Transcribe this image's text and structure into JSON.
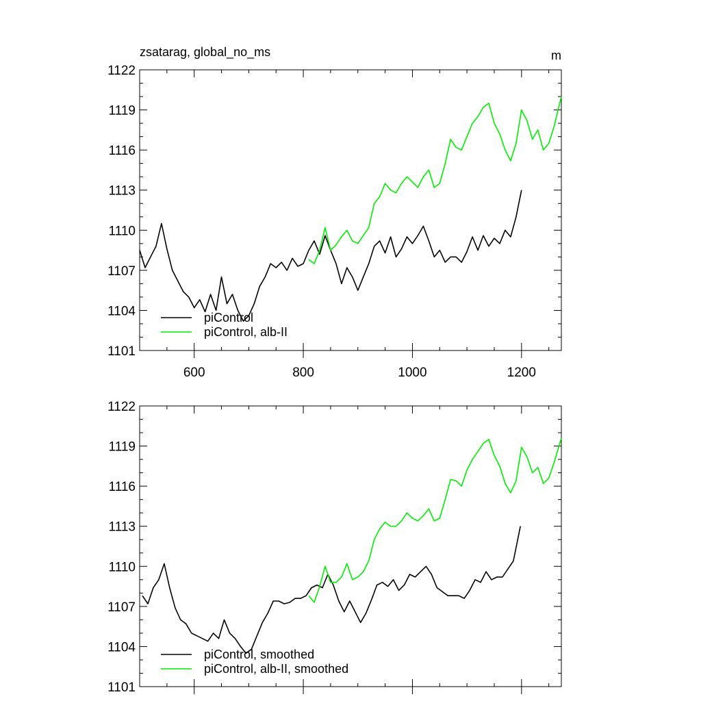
{
  "figure": {
    "title_left": "zsatarag, global_no_ms",
    "title_right": "m"
  },
  "colors": {
    "piControl": "#000000",
    "alb_II": "#00ee00"
  },
  "chart_data": [
    {
      "type": "line",
      "panel": "top",
      "title": "zsatarag, global_no_ms",
      "units_label": "m",
      "xlabel": "",
      "ylabel": "",
      "xlim": [
        500,
        1273
      ],
      "ylim": [
        1101,
        1122
      ],
      "xticks": [
        600,
        800,
        1000,
        1200
      ],
      "yticks": [
        1101,
        1104,
        1107,
        1110,
        1113,
        1116,
        1119,
        1122
      ],
      "show_x_tick_labels": true,
      "grid": false,
      "legend_placement": "lower-left",
      "series": [
        {
          "name": "piControl",
          "color": "#000000",
          "x": [
            500,
            510,
            520,
            530,
            540,
            550,
            560,
            570,
            580,
            590,
            600,
            610,
            620,
            630,
            640,
            650,
            660,
            670,
            680,
            690,
            700,
            710,
            720,
            730,
            740,
            750,
            760,
            770,
            780,
            790,
            800,
            810,
            820,
            830,
            840,
            850,
            860,
            870,
            880,
            890,
            900,
            910,
            920,
            930,
            940,
            950,
            960,
            970,
            980,
            990,
            1000,
            1010,
            1020,
            1030,
            1040,
            1050,
            1060,
            1070,
            1080,
            1090,
            1100,
            1110,
            1120,
            1130,
            1140,
            1150,
            1160,
            1170,
            1180,
            1190,
            1200
          ],
          "y": [
            1108.5,
            1107.2,
            1108.0,
            1108.8,
            1110.5,
            1108.6,
            1107.0,
            1106.2,
            1105.4,
            1105.0,
            1104.2,
            1104.8,
            1103.9,
            1105.2,
            1104.0,
            1106.5,
            1104.5,
            1105.2,
            1104.0,
            1103.2,
            1103.6,
            1104.5,
            1105.8,
            1106.5,
            1107.5,
            1107.2,
            1107.6,
            1107.0,
            1107.9,
            1107.3,
            1107.5,
            1108.5,
            1109.2,
            1108.2,
            1109.6,
            1108.5,
            1107.5,
            1106.0,
            1107.2,
            1106.5,
            1105.5,
            1106.5,
            1107.5,
            1108.8,
            1109.2,
            1108.3,
            1109.5,
            1108.0,
            1108.6,
            1109.5,
            1109.0,
            1109.6,
            1110.3,
            1109.2,
            1108.0,
            1108.5,
            1107.6,
            1108.0,
            1108.0,
            1107.6,
            1108.4,
            1109.5,
            1108.5,
            1109.6,
            1108.8,
            1109.4,
            1109.0,
            1110.0,
            1109.5,
            1111.0,
            1113.0
          ]
        },
        {
          "name": "piControl, alb-II",
          "color": "#00ee00",
          "x": [
            810,
            820,
            830,
            840,
            850,
            860,
            870,
            880,
            890,
            900,
            910,
            920,
            930,
            940,
            950,
            960,
            970,
            980,
            990,
            1000,
            1010,
            1020,
            1030,
            1040,
            1050,
            1060,
            1070,
            1080,
            1090,
            1100,
            1110,
            1120,
            1130,
            1140,
            1150,
            1160,
            1170,
            1180,
            1190,
            1200,
            1210,
            1220,
            1230,
            1240,
            1250,
            1260,
            1273
          ],
          "y": [
            1107.8,
            1107.5,
            1108.5,
            1110.2,
            1108.5,
            1108.9,
            1109.5,
            1110.0,
            1109.2,
            1109.0,
            1109.6,
            1110.2,
            1112.0,
            1112.5,
            1113.5,
            1113.0,
            1112.8,
            1113.5,
            1114.0,
            1113.6,
            1113.2,
            1114.0,
            1114.5,
            1113.2,
            1113.5,
            1115.0,
            1116.8,
            1116.2,
            1116.0,
            1117.0,
            1118.0,
            1118.5,
            1119.2,
            1119.5,
            1118.0,
            1117.2,
            1116.0,
            1115.2,
            1116.5,
            1119.0,
            1118.2,
            1116.8,
            1117.5,
            1116.0,
            1116.5,
            1117.8,
            1120.0
          ]
        }
      ]
    },
    {
      "type": "line",
      "panel": "bottom",
      "title": "",
      "xlabel": "",
      "ylabel": "",
      "xlim": [
        500,
        1273
      ],
      "ylim": [
        1101,
        1122
      ],
      "xticks": [
        600,
        800,
        1000,
        1200
      ],
      "yticks": [
        1101,
        1104,
        1107,
        1110,
        1113,
        1116,
        1119,
        1122
      ],
      "show_x_tick_labels": false,
      "grid": false,
      "legend_placement": "lower-left",
      "series": [
        {
          "name": "piControl, smoothed",
          "color": "#000000",
          "x": [
            505,
            515,
            525,
            535,
            545,
            555,
            565,
            575,
            585,
            595,
            605,
            615,
            625,
            635,
            645,
            655,
            665,
            675,
            685,
            695,
            705,
            715,
            725,
            735,
            745,
            755,
            765,
            775,
            785,
            795,
            805,
            815,
            825,
            835,
            845,
            855,
            865,
            875,
            885,
            895,
            905,
            915,
            925,
            935,
            945,
            955,
            965,
            975,
            985,
            995,
            1005,
            1015,
            1025,
            1035,
            1045,
            1055,
            1065,
            1075,
            1085,
            1095,
            1105,
            1115,
            1125,
            1135,
            1145,
            1155,
            1165,
            1175,
            1185,
            1198
          ],
          "y": [
            1107.8,
            1107.2,
            1108.4,
            1109.0,
            1110.2,
            1108.4,
            1106.9,
            1106.0,
            1105.7,
            1105.0,
            1104.8,
            1104.6,
            1104.4,
            1105.0,
            1104.6,
            1106.0,
            1105.0,
            1104.6,
            1104.0,
            1103.5,
            1103.8,
            1104.8,
            1105.8,
            1106.5,
            1107.4,
            1107.4,
            1107.2,
            1107.3,
            1107.6,
            1107.6,
            1107.8,
            1108.4,
            1108.6,
            1108.4,
            1109.4,
            1108.6,
            1107.4,
            1106.6,
            1107.4,
            1106.6,
            1105.8,
            1106.5,
            1107.5,
            1108.6,
            1108.8,
            1108.5,
            1109.0,
            1108.2,
            1108.6,
            1109.4,
            1109.2,
            1109.6,
            1110.0,
            1109.4,
            1108.4,
            1108.1,
            1107.8,
            1107.8,
            1107.8,
            1107.6,
            1108.2,
            1109.0,
            1108.8,
            1109.6,
            1109.0,
            1109.2,
            1109.2,
            1109.8,
            1110.4,
            1113.0
          ]
        },
        {
          "name": "piControl, alb-II, smoothed",
          "color": "#00ee00",
          "x": [
            810,
            820,
            830,
            840,
            850,
            860,
            870,
            880,
            890,
            900,
            910,
            920,
            930,
            940,
            950,
            960,
            970,
            980,
            990,
            1000,
            1010,
            1020,
            1030,
            1040,
            1050,
            1060,
            1070,
            1080,
            1090,
            1100,
            1110,
            1120,
            1130,
            1140,
            1150,
            1160,
            1170,
            1180,
            1190,
            1200,
            1210,
            1220,
            1230,
            1240,
            1250,
            1260,
            1273
          ],
          "y": [
            1107.8,
            1107.3,
            1108.5,
            1110.0,
            1108.8,
            1108.8,
            1109.2,
            1110.2,
            1109.0,
            1109.2,
            1109.6,
            1110.4,
            1112.0,
            1112.8,
            1113.3,
            1113.0,
            1113.0,
            1113.4,
            1114.0,
            1113.6,
            1113.4,
            1113.8,
            1114.3,
            1113.4,
            1113.6,
            1115.0,
            1116.5,
            1116.4,
            1116.0,
            1117.2,
            1118.0,
            1118.6,
            1119.2,
            1119.5,
            1118.3,
            1117.5,
            1116.2,
            1115.5,
            1116.4,
            1118.9,
            1118.2,
            1117.0,
            1117.4,
            1116.2,
            1116.6,
            1117.8,
            1119.6
          ]
        }
      ]
    }
  ]
}
